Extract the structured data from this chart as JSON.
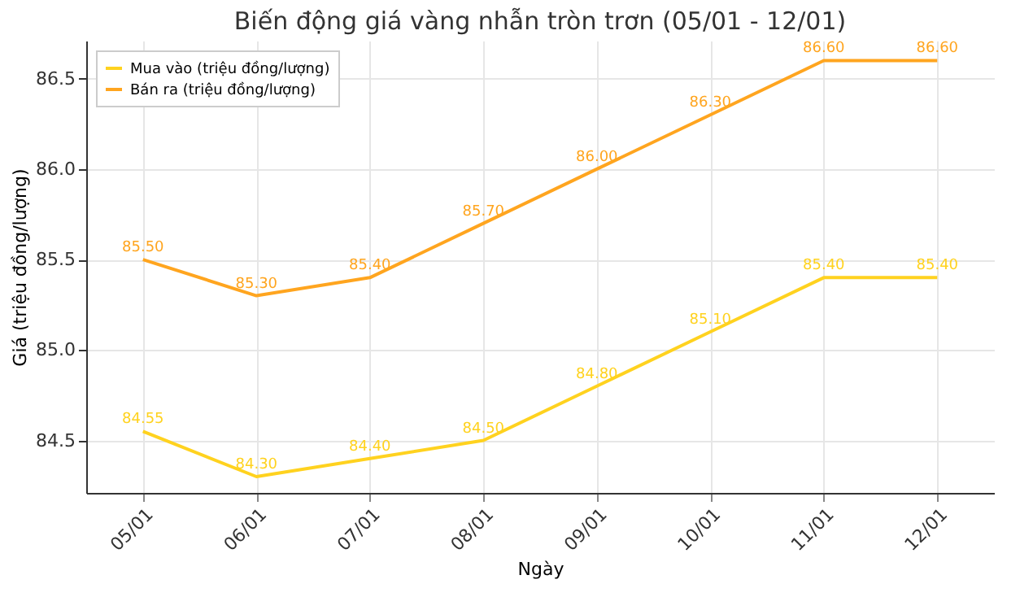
{
  "chart_data": {
    "type": "line",
    "title": "Biến động giá vàng nhẫn tròn trơn (05/01 - 12/01)",
    "xlabel": "Ngày",
    "ylabel": "Giá (triệu đồng/lượng)",
    "categories": [
      "05/01",
      "06/01",
      "07/01",
      "08/01",
      "09/01",
      "10/01",
      "11/01",
      "12/01"
    ],
    "series": [
      {
        "name": "Mua vào (triệu đồng/lượng)",
        "color": "#ffd21f",
        "values": [
          84.55,
          84.3,
          84.4,
          84.5,
          84.8,
          85.1,
          85.4,
          85.4
        ],
        "value_labels": [
          "84.55",
          "84.30",
          "84.40",
          "84.50",
          "84.80",
          "85.10",
          "85.40",
          "85.40"
        ]
      },
      {
        "name": "Bán ra (triệu đồng/lượng)",
        "color": "#ffa51f",
        "values": [
          85.5,
          85.3,
          85.4,
          85.7,
          86.0,
          86.3,
          86.6,
          86.6
        ],
        "value_labels": [
          "85.50",
          "85.30",
          "85.40",
          "85.70",
          "86.00",
          "86.30",
          "86.60",
          "86.60"
        ]
      }
    ],
    "ylim": [
      84.21,
      86.71
    ],
    "yticks": [
      84.5,
      {
        "value": 85,
        "label": "85.0"
      },
      85.5,
      {
        "value": 86,
        "label": "86.0"
      },
      86.5
    ],
    "grid": true,
    "legend": "top left",
    "marker": "none",
    "line_style": "solid"
  }
}
